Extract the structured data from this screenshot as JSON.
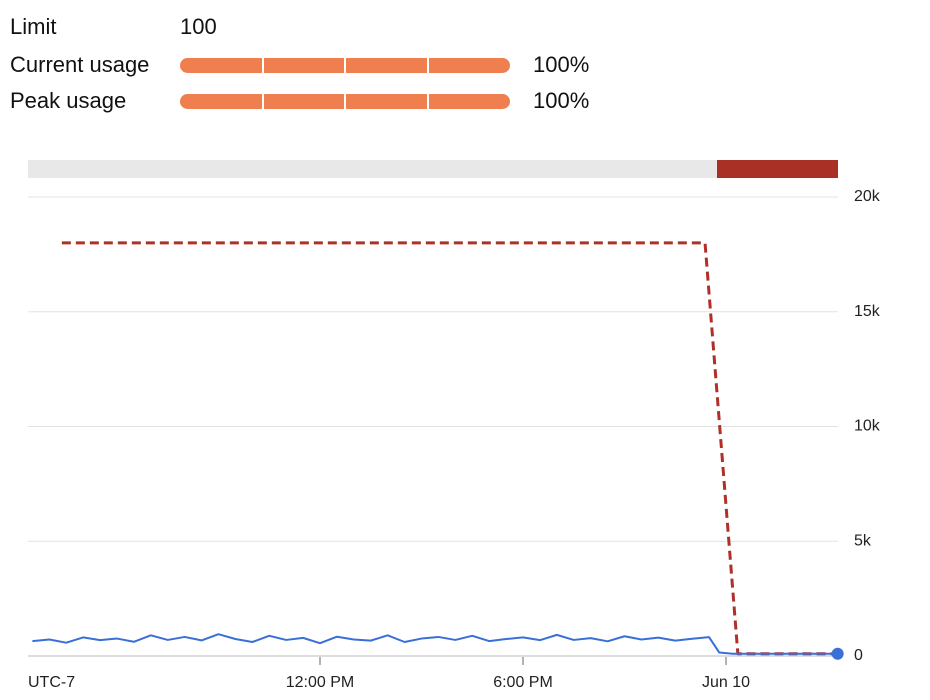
{
  "header": {
    "limit": {
      "label": "Limit",
      "value": "100"
    },
    "usage": [
      {
        "label": "Current usage",
        "value": 100,
        "value_label": "100%"
      },
      {
        "label": "Peak usage",
        "value": 100,
        "value_label": "100%"
      }
    ]
  },
  "chart_data": {
    "type": "line",
    "x_label": "UTC-7",
    "xlim": [
      3.37,
      27.31
    ],
    "xticks": [
      {
        "value": 12,
        "label": "12:00 PM"
      },
      {
        "value": 18,
        "label": "6:00 PM"
      },
      {
        "value": 24,
        "label": "Jun 10"
      }
    ],
    "ylim": [
      0,
      20000
    ],
    "yticks": [
      0,
      {
        "value": 5000,
        "label": "5k"
      },
      {
        "value": 10000,
        "label": "10k"
      },
      {
        "value": 15000,
        "label": "15k"
      },
      {
        "value": 20000,
        "label": "20k"
      }
    ],
    "grid": true,
    "series": [
      {
        "color": "#b03028",
        "dashed": true,
        "x": [
          4.37,
          23.38,
          24.35,
          27.3
        ],
        "values": [
          18000,
          18000,
          100,
          100
        ]
      },
      {
        "color": "#3a6fd8",
        "dashed": false,
        "end_marker": true,
        "x": [
          3.5,
          4.0,
          4.5,
          5.0,
          5.5,
          6.0,
          6.5,
          7.0,
          7.5,
          8.0,
          8.5,
          9.0,
          9.5,
          10.0,
          10.5,
          11.0,
          11.5,
          12.0,
          12.5,
          13.0,
          13.5,
          14.0,
          14.5,
          15.0,
          15.5,
          16.0,
          16.5,
          17.0,
          17.5,
          18.0,
          18.5,
          19.0,
          19.5,
          20.0,
          20.5,
          21.0,
          21.5,
          22.0,
          22.5,
          23.0,
          23.5,
          23.8,
          24.2,
          25.0,
          26.0,
          27.3
        ],
        "values": [
          650,
          720,
          580,
          810,
          690,
          760,
          620,
          900,
          700,
          830,
          680,
          950,
          740,
          610,
          880,
          700,
          790,
          560,
          840,
          720,
          670,
          900,
          610,
          760,
          830,
          700,
          880,
          650,
          740,
          810,
          690,
          920,
          700,
          780,
          640,
          860,
          720,
          800,
          670,
          750,
          820,
          150,
          100,
          100,
          100,
          100
        ]
      }
    ]
  }
}
